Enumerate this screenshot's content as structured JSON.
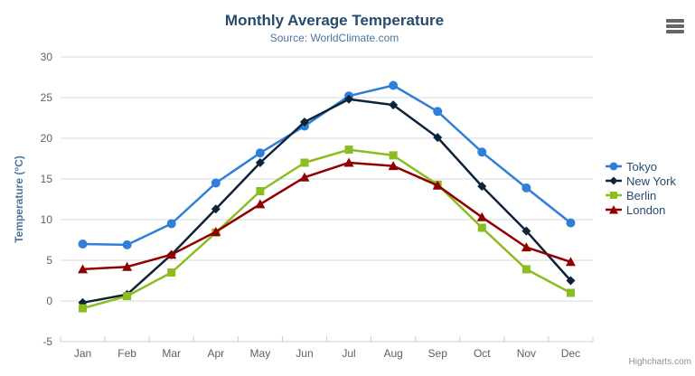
{
  "header": {
    "title": "Monthly Average Temperature",
    "subtitle": "Source: WorldClimate.com"
  },
  "toolbar": {
    "export_menu_icon": "hamburger-icon"
  },
  "credits": {
    "label": "Highcharts.com"
  },
  "chart_data": {
    "type": "line",
    "title": "Monthly Average Temperature",
    "subtitle": "Source: WorldClimate.com",
    "categories": [
      "Jan",
      "Feb",
      "Mar",
      "Apr",
      "May",
      "Jun",
      "Jul",
      "Aug",
      "Sep",
      "Oct",
      "Nov",
      "Dec"
    ],
    "series": [
      {
        "name": "Tokyo",
        "color": "#2f7ed8",
        "marker": "circle",
        "values": [
          7.0,
          6.9,
          9.5,
          14.5,
          18.2,
          21.5,
          25.2,
          26.5,
          23.3,
          18.3,
          13.9,
          9.6
        ]
      },
      {
        "name": "New York",
        "color": "#0d233a",
        "marker": "diamond",
        "values": [
          -0.2,
          0.8,
          5.7,
          11.3,
          17.0,
          22.0,
          24.8,
          24.1,
          20.1,
          14.1,
          8.6,
          2.5
        ]
      },
      {
        "name": "Berlin",
        "color": "#8bbc21",
        "marker": "square",
        "values": [
          -0.9,
          0.6,
          3.5,
          8.4,
          13.5,
          17.0,
          18.6,
          17.9,
          14.3,
          9.0,
          3.9,
          1.0
        ]
      },
      {
        "name": "London",
        "color": "#910000",
        "marker": "triangle",
        "values": [
          3.9,
          4.2,
          5.7,
          8.5,
          11.9,
          15.2,
          17.0,
          16.6,
          14.2,
          10.3,
          6.6,
          4.8
        ]
      }
    ],
    "xlabel": "",
    "ylabel": "Temperature (°C)",
    "ylim": [
      -5,
      30
    ],
    "yticks": [
      -5,
      0,
      5,
      10,
      15,
      20,
      25,
      30
    ],
    "grid": true,
    "legend_position": "right",
    "colors": {
      "title": "#274b6d",
      "subtitle": "#4d759e",
      "axis_label": "#606060",
      "axis_title": "#4d759e",
      "gridline": "#d8d8d8",
      "axis_line": "#c0d0e0",
      "legend_text": "#274b6d",
      "credits_text": "#909090"
    }
  }
}
